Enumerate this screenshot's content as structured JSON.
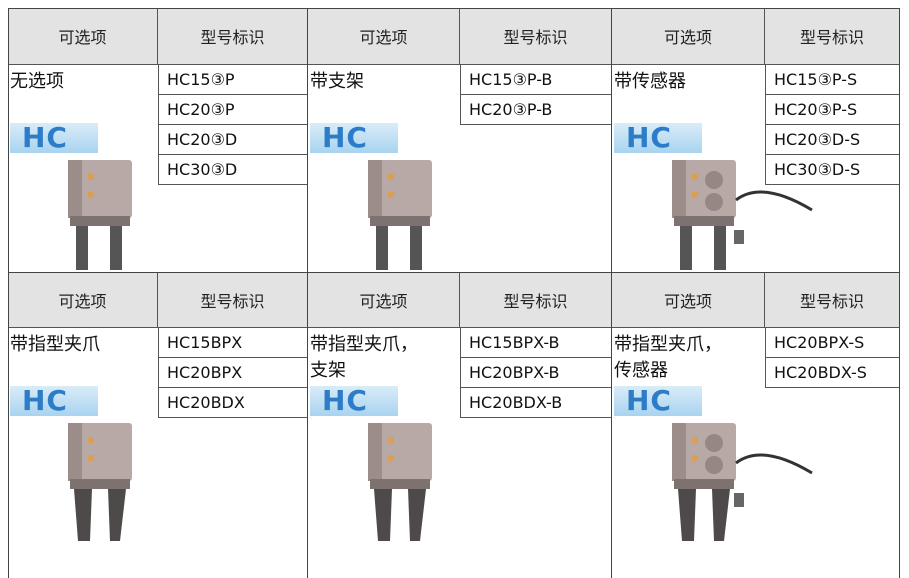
{
  "sections": [
    {
      "header": [
        "可选项",
        "型号标识"
      ],
      "option": "无选项",
      "logo": "HC",
      "models": [
        "HC15③P",
        "HC20③P",
        "HC20③D",
        "HC30③D"
      ]
    },
    {
      "header": [
        "可选项",
        "型号标识"
      ],
      "option": "带支架",
      "logo": "HC",
      "models": [
        "HC15③P-B",
        "HC20③P-B"
      ]
    },
    {
      "header": [
        "可选项",
        "型号标识"
      ],
      "option": "带传感器",
      "logo": "HC",
      "models": [
        "HC15③P-S",
        "HC20③P-S",
        "HC20③D-S",
        "HC30③D-S"
      ]
    },
    {
      "header": [
        "可选项",
        "型号标识"
      ],
      "option": "带指型夹爪",
      "logo": "HC",
      "models": [
        "HC15BPX",
        "HC20BPX",
        "HC20BDX"
      ]
    },
    {
      "header": [
        "可选项",
        "型号标识"
      ],
      "option": "带指型夹爪，\n支架",
      "logo": "HC",
      "models": [
        "HC15BPX-B",
        "HC20BPX-B",
        "HC20BDX-B"
      ]
    },
    {
      "header": [
        "可选项",
        "型号标识"
      ],
      "option": "带指型夹爪，\n传感器",
      "logo": "HC",
      "models": [
        "HC20BPX-S",
        "HC20BDX-S"
      ]
    }
  ]
}
